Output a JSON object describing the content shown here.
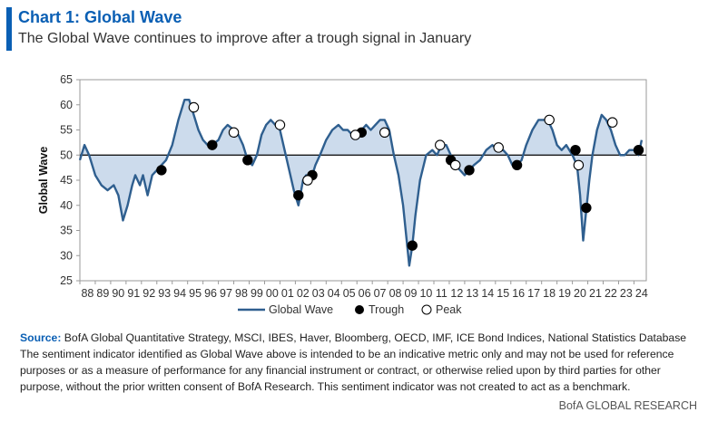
{
  "header": {
    "title": "Chart 1: Global Wave",
    "subtitle": "The Global Wave continues to improve after a trough signal in January"
  },
  "chart_data": {
    "type": "line",
    "title": "Chart 1: Global Wave",
    "subtitle": "The Global Wave continues to improve after a trough signal in January",
    "ylabel": "Global Wave",
    "xlabel": "",
    "ylim": [
      25,
      65
    ],
    "xlim": [
      1988,
      2024.8
    ],
    "y_ticks": [
      25,
      30,
      35,
      40,
      45,
      50,
      55,
      60,
      65
    ],
    "x_tick_labels": [
      "88",
      "89",
      "90",
      "91",
      "92",
      "93",
      "94",
      "95",
      "96",
      "97",
      "98",
      "99",
      "00",
      "01",
      "02",
      "03",
      "04",
      "05",
      "06",
      "07",
      "08",
      "09",
      "10",
      "11",
      "12",
      "13",
      "14",
      "15",
      "16",
      "17",
      "18",
      "19",
      "20",
      "21",
      "22",
      "23",
      "24"
    ],
    "baseline": 50,
    "grid": false,
    "legend_position": "bottom",
    "legend": [
      "Global Wave",
      "Trough",
      "Peak"
    ],
    "colors": {
      "line": "#2f5f8f",
      "fill": "#c7d7ea",
      "trough": "#000000",
      "peak": "#ffffff",
      "accent": "#0a5fb4"
    },
    "series": [
      {
        "name": "Global Wave",
        "x": [
          1988.0,
          1988.3,
          1988.6,
          1989.0,
          1989.4,
          1989.8,
          1990.2,
          1990.5,
          1990.8,
          1991.1,
          1991.4,
          1991.6,
          1991.9,
          1992.1,
          1992.4,
          1992.7,
          1993.0,
          1993.3,
          1993.6,
          1994.0,
          1994.4,
          1994.8,
          1995.1,
          1995.4,
          1995.7,
          1996.0,
          1996.3,
          1996.6,
          1997.0,
          1997.3,
          1997.6,
          1998.0,
          1998.3,
          1998.6,
          1998.9,
          1999.2,
          1999.5,
          1999.8,
          2000.1,
          2000.4,
          2000.7,
          2001.0,
          2001.3,
          2001.6,
          2001.9,
          2002.2,
          2002.5,
          2002.7,
          2003.0,
          2003.3,
          2003.6,
          2004.0,
          2004.4,
          2004.8,
          2005.1,
          2005.4,
          2005.7,
          2006.0,
          2006.3,
          2006.6,
          2006.9,
          2007.2,
          2007.5,
          2007.8,
          2008.1,
          2008.4,
          2008.7,
          2009.0,
          2009.2,
          2009.4,
          2009.6,
          2009.8,
          2010.1,
          2010.5,
          2010.9,
          2011.2,
          2011.5,
          2011.8,
          2012.1,
          2012.4,
          2012.7,
          2013.0,
          2013.3,
          2013.6,
          2014.0,
          2014.4,
          2014.8,
          2015.1,
          2015.5,
          2015.8,
          2016.1,
          2016.4,
          2016.7,
          2017.0,
          2017.4,
          2017.8,
          2018.1,
          2018.4,
          2018.7,
          2019.0,
          2019.3,
          2019.6,
          2020.0,
          2020.3,
          2020.5,
          2020.7,
          2020.9,
          2021.1,
          2021.3,
          2021.6,
          2021.9,
          2022.2,
          2022.5,
          2022.8,
          2023.1,
          2023.4,
          2023.7,
          2024.0,
          2024.3,
          2024.5
        ],
        "values": [
          49,
          52,
          50,
          46,
          44,
          43,
          44,
          42,
          37,
          40,
          44,
          46,
          44,
          46,
          42,
          46,
          47,
          48,
          49,
          52,
          57,
          61,
          61,
          58,
          55,
          53,
          52,
          52,
          53,
          55,
          56,
          55,
          54,
          52,
          49,
          48,
          50,
          54,
          56,
          57,
          56,
          55,
          51,
          47,
          43,
          40,
          45,
          46,
          45,
          48,
          50,
          53,
          55,
          56,
          55,
          55,
          54,
          54,
          55,
          56,
          55,
          56,
          57,
          57,
          55,
          50,
          46,
          40,
          34,
          28,
          32,
          38,
          45,
          50,
          51,
          50,
          52,
          52,
          50,
          48,
          47,
          46,
          47,
          48,
          49,
          51,
          52,
          51,
          51,
          50,
          48,
          48,
          49,
          52,
          55,
          57,
          57,
          57,
          55,
          52,
          51,
          52,
          50,
          48,
          42,
          33,
          39,
          45,
          50,
          55,
          58,
          57,
          55,
          52,
          50,
          50,
          51,
          51,
          50,
          53
        ]
      }
    ],
    "troughs": [
      {
        "x": 1993.3,
        "y": 47
      },
      {
        "x": 1996.6,
        "y": 52
      },
      {
        "x": 1998.9,
        "y": 49
      },
      {
        "x": 2002.2,
        "y": 42
      },
      {
        "x": 2003.1,
        "y": 46
      },
      {
        "x": 2006.3,
        "y": 54.5
      },
      {
        "x": 2009.6,
        "y": 32
      },
      {
        "x": 2012.1,
        "y": 49
      },
      {
        "x": 2013.3,
        "y": 47
      },
      {
        "x": 2016.4,
        "y": 48
      },
      {
        "x": 2020.2,
        "y": 51
      },
      {
        "x": 2020.9,
        "y": 39.5
      },
      {
        "x": 2024.3,
        "y": 51
      }
    ],
    "peaks": [
      {
        "x": 1995.4,
        "y": 59.5
      },
      {
        "x": 1998.0,
        "y": 54.5
      },
      {
        "x": 2001.0,
        "y": 56
      },
      {
        "x": 2002.8,
        "y": 45
      },
      {
        "x": 2005.9,
        "y": 54
      },
      {
        "x": 2007.8,
        "y": 54.5
      },
      {
        "x": 2011.4,
        "y": 52
      },
      {
        "x": 2012.4,
        "y": 48
      },
      {
        "x": 2015.2,
        "y": 51.5
      },
      {
        "x": 2018.5,
        "y": 57
      },
      {
        "x": 2020.4,
        "y": 48
      },
      {
        "x": 2022.6,
        "y": 56.5
      }
    ]
  },
  "notes": {
    "source_label": "Source:",
    "source_text": "BofA Global Quantitative Strategy, MSCI, IBES, Haver, Bloomberg, OECD, IMF, ICE Bond Indices, National Statistics Database",
    "disclaimer": "The sentiment indicator identified as Global Wave above is intended to be an indicative metric only and may not be used for reference purposes or as a measure of performance for any financial instrument or contract, or otherwise relied upon by third parties for other purpose, without the prior written consent of BofA Research. This sentiment indicator was not created to act as a benchmark."
  },
  "footer": {
    "brand": "BofA GLOBAL RESEARCH"
  }
}
